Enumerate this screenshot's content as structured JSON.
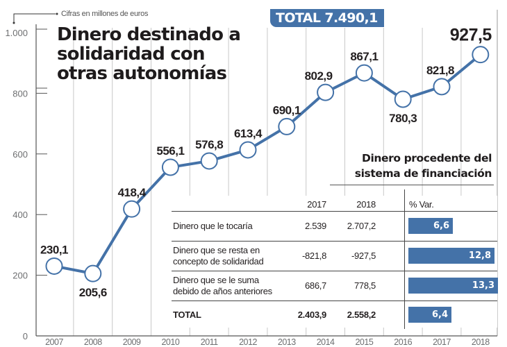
{
  "chart_data": {
    "type": "line",
    "title": "Dinero destinado a solidaridad con otras autonomías",
    "units_note": "Cifras en millones de euros",
    "total_badge": "TOTAL 7.490,1",
    "x": [
      "2007",
      "2008",
      "2009",
      "2010",
      "2011",
      "2012",
      "2013",
      "2014",
      "2015",
      "2016",
      "2017",
      "2018"
    ],
    "series": [
      {
        "name": "Solidaridad",
        "values": [
          230.1,
          205.6,
          418.4,
          556.1,
          576.8,
          613.4,
          690.1,
          802.9,
          867.1,
          780.3,
          821.8,
          927.5
        ]
      }
    ],
    "value_labels": [
      "230,1",
      "205,6",
      "418,4",
      "556,1",
      "576,8",
      "613,4",
      "690,1",
      "802,9",
      "867,1",
      "780,3",
      "821,8",
      "927,5"
    ],
    "yticks": [
      0,
      200,
      400,
      600,
      800,
      1000
    ],
    "ytick_labels": [
      "0",
      "200",
      "400",
      "600",
      "800",
      "1.000"
    ],
    "ylim": [
      0,
      1000
    ],
    "xlabel": "",
    "ylabel": "",
    "grid": "vertical",
    "line_color": "#4472a8"
  },
  "table": {
    "title_line1": "Dinero procedente del",
    "title_line2": "sistema de financiación",
    "headers": [
      "",
      "2017",
      "2018",
      "% Var."
    ],
    "rows": [
      {
        "label_lines": [
          "Dinero que le tocaría"
        ],
        "v2017": "2.539",
        "v2018": "2.707,2",
        "var": 6.6,
        "var_label": "6,6",
        "bold": false
      },
      {
        "label_lines": [
          "Dinero que se resta en",
          "concepto de solidaridad"
        ],
        "v2017": "-821,8",
        "v2018": "-927,5",
        "var": 12.8,
        "var_label": "12,8",
        "bold": false
      },
      {
        "label_lines": [
          "Dinero que se le suma",
          "debido de años anteriores"
        ],
        "v2017": "686,7",
        "v2018": "778,5",
        "var": 13.3,
        "var_label": "13,3",
        "bold": false
      },
      {
        "label_lines": [
          "TOTAL"
        ],
        "v2017": "2.403,9",
        "v2018": "2.558,2",
        "var": 6.4,
        "var_label": "6,4",
        "bold": true
      }
    ],
    "bar_color": "#4472a8"
  }
}
